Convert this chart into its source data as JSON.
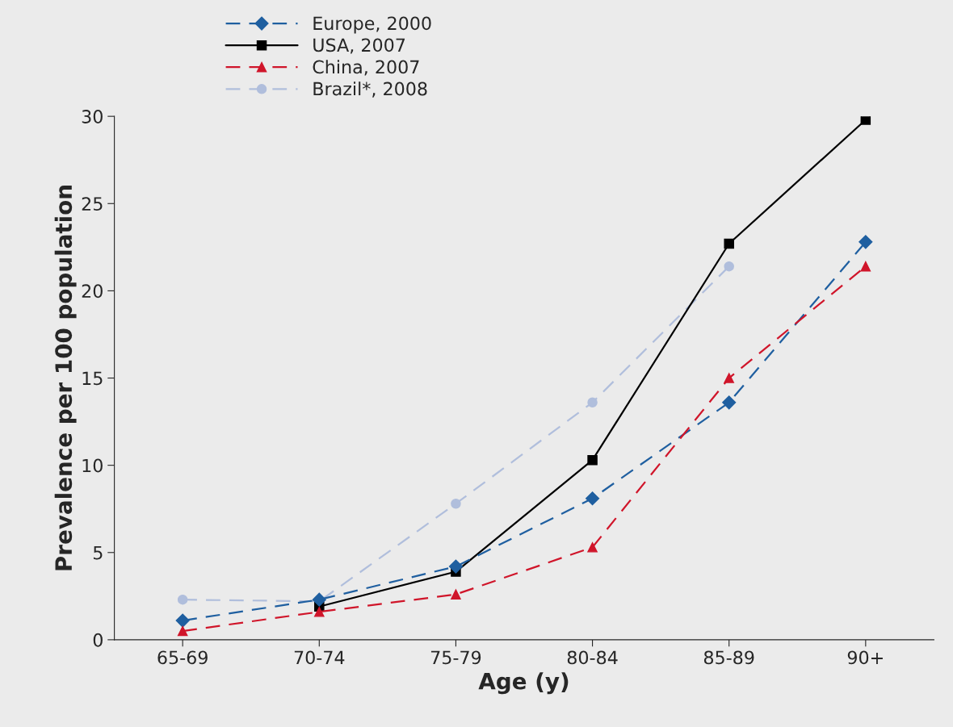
{
  "chart_data": {
    "type": "line",
    "xlabel": "Age (y)",
    "ylabel": "Prevalence per 100 population",
    "categories": [
      "65-69",
      "70-74",
      "75-79",
      "80-84",
      "85-89",
      "90+"
    ],
    "series": [
      {
        "name": "Europe, 2000",
        "color": "#1f5fa0",
        "marker": "diamond",
        "line_style": "dashed",
        "values": [
          1.1,
          2.3,
          4.2,
          8.1,
          13.6,
          22.8
        ]
      },
      {
        "name": "USA, 2007",
        "color": "#000000",
        "marker": "square",
        "line_style": "solid",
        "values": [
          null,
          1.9,
          3.9,
          10.3,
          22.7,
          29.8
        ]
      },
      {
        "name": "China, 2007",
        "color": "#d0152a",
        "marker": "triangle",
        "line_style": "dashed",
        "values": [
          0.5,
          1.6,
          2.6,
          5.3,
          15.0,
          21.4
        ]
      },
      {
        "name": "Brazil*, 2008",
        "color": "#b0bedc",
        "marker": "circle",
        "line_style": "dashed",
        "values": [
          2.3,
          2.2,
          7.8,
          13.6,
          21.4,
          null
        ]
      }
    ],
    "ylim": [
      0,
      30
    ],
    "yticks": [
      0,
      5,
      10,
      15,
      20,
      25,
      30
    ],
    "grid": false,
    "legend": "top left"
  }
}
